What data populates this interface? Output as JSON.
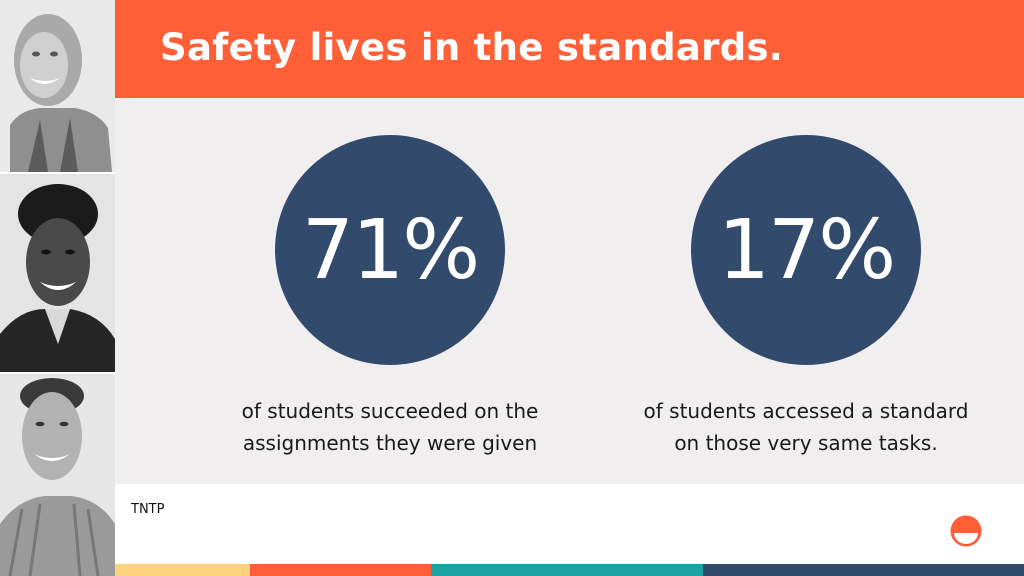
{
  "slide": {
    "title": "Safety lives in the standards."
  },
  "stats": [
    {
      "value": "71%",
      "caption_line1": "of students succeeded on the",
      "caption_line2": "assignments they were given"
    },
    {
      "value": "17%",
      "caption_line1": "of students accessed a standard",
      "caption_line2": "on those very same tasks."
    }
  ],
  "footer": {
    "label": "TNTP"
  },
  "colors": {
    "accent_orange": "#ff5f36",
    "circle_navy": "#324a6c",
    "stripe_yellow": "#fdd27c",
    "stripe_orange": "#ff5f36",
    "stripe_teal": "#1aa3a3",
    "stripe_navy": "#324a6c"
  },
  "icons": [
    "smiling-woman-photo",
    "smiling-woman-photo",
    "smiling-man-photo",
    "half-smile-logo-icon"
  ]
}
